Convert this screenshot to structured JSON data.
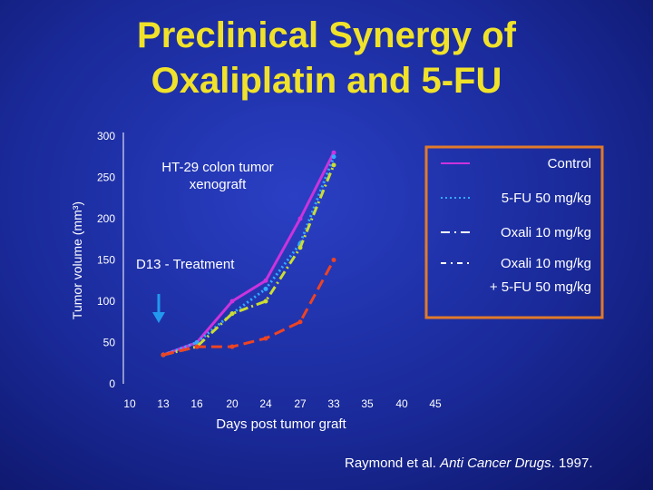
{
  "slide": {
    "title_line1": "Preclinical Synergy of",
    "title_line2": "Oxaliplatin and 5-FU",
    "citation_prefix": "Raymond et al.",
    "citation_journal": "Anti Cancer Drugs",
    "citation_suffix": ". 1997."
  },
  "chart_data": {
    "type": "line",
    "ylabel": "Tumor volume (mm³)",
    "xlabel": "Days post tumor graft",
    "x_ticks": [
      "10",
      "13",
      "16",
      "20",
      "24",
      "27",
      "33",
      "35",
      "40",
      "45"
    ],
    "y_ticks": [
      0,
      50,
      100,
      150,
      200,
      250,
      300
    ],
    "ylim": [
      0,
      300
    ],
    "annotations": {
      "model": "HT-29 colon tumor\nxenograft",
      "treatment": "D13 - Treatment"
    },
    "legend": {
      "placement": "right",
      "entries": [
        "Control",
        "5-FU 50 mg/kg",
        "Oxali 10 mg/kg",
        "Oxali 10 mg/kg",
        "+ 5-FU 50 mg/kg"
      ]
    },
    "series": [
      {
        "name": "Control",
        "color": "#cc33dd",
        "style": "solid",
        "x_index": [
          1,
          2,
          3,
          4,
          5,
          6
        ],
        "values": [
          35,
          50,
          100,
          125,
          200,
          280
        ]
      },
      {
        "name": "5-FU 50 mg/kg",
        "color": "#33aaff",
        "style": "dotted",
        "x_index": [
          1,
          2,
          3,
          4,
          5,
          6
        ],
        "values": [
          35,
          50,
          85,
          115,
          170,
          275
        ]
      },
      {
        "name": "Oxali 10 mg/kg",
        "color": "#ccdd33",
        "style": "dashdot",
        "x_index": [
          1,
          2,
          3,
          4,
          5,
          6
        ],
        "values": [
          35,
          45,
          85,
          100,
          165,
          265
        ]
      },
      {
        "name": "Oxali 10 mg/kg + 5-FU 50 mg/kg",
        "color": "#ee4422",
        "style": "dashed",
        "x_index": [
          1,
          2,
          3,
          4,
          5,
          6
        ],
        "values": [
          35,
          45,
          45,
          55,
          75,
          150
        ]
      }
    ]
  },
  "colors": {
    "title": "#f0e22a",
    "legend_border": "#e07a2a",
    "arrow": "#2299ee"
  }
}
